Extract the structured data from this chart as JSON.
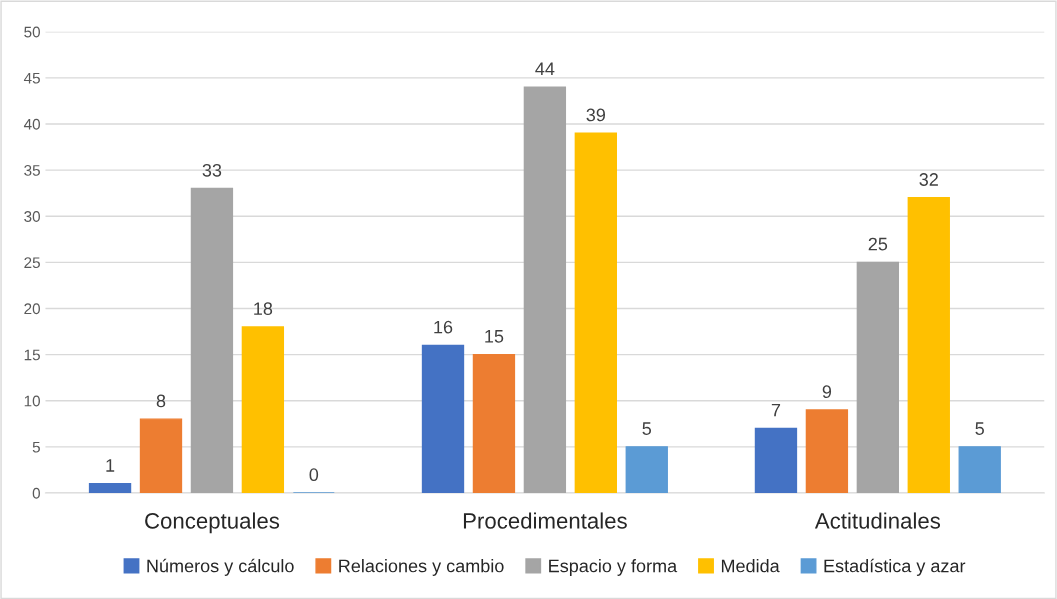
{
  "chart_data": {
    "type": "bar",
    "categories": [
      "Conceptuales",
      "Procedimentales",
      "Actitudinales"
    ],
    "series": [
      {
        "name": "Números y cálculo",
        "color": "#4472c4",
        "values": [
          1,
          16,
          7
        ]
      },
      {
        "name": "Relaciones y cambio",
        "color": "#ed7d31",
        "values": [
          8,
          15,
          9
        ]
      },
      {
        "name": "Espacio y forma",
        "color": "#a5a5a5",
        "values": [
          33,
          44,
          25
        ]
      },
      {
        "name": "Medida",
        "color": "#ffc000",
        "values": [
          18,
          39,
          32
        ]
      },
      {
        "name": "Estadística y azar",
        "color": "#5b9bd5",
        "values": [
          0,
          5,
          5
        ]
      }
    ],
    "ylim": [
      0,
      50
    ],
    "yticks": [
      0,
      5,
      10,
      15,
      20,
      25,
      30,
      35,
      40,
      45,
      50
    ],
    "grid": "y",
    "legend": "bottom",
    "data_labels": true
  }
}
